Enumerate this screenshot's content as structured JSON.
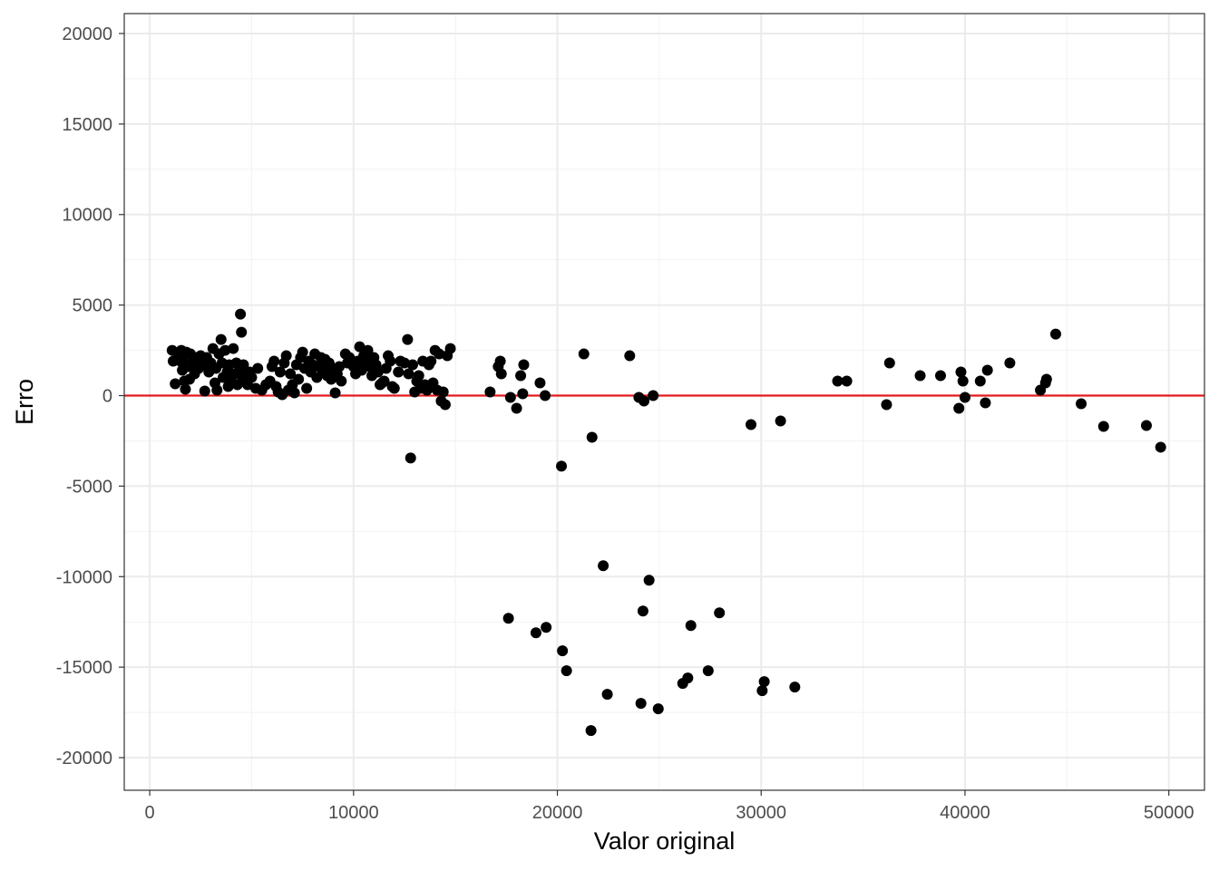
{
  "chart_data": {
    "type": "scatter",
    "title": "",
    "xlabel": "Valor original",
    "ylabel": "Erro",
    "xlim": [
      -1250,
      51750
    ],
    "ylim": [
      -21800,
      21100
    ],
    "x_ticks": [
      0,
      10000,
      20000,
      30000,
      40000,
      50000
    ],
    "x_tick_labels": [
      "0",
      "10000",
      "20000",
      "30000",
      "40000",
      "50000"
    ],
    "y_ticks": [
      -20000,
      -15000,
      -10000,
      -5000,
      0,
      5000,
      10000,
      15000,
      20000
    ],
    "y_tick_labels": [
      "-20000",
      "-15000",
      "-10000",
      "-5000",
      "0",
      "5000",
      "10000",
      "15000",
      "20000"
    ],
    "grid": true,
    "reference_line": {
      "y": 0,
      "color": "#e41a1c"
    },
    "point_color": "#000000",
    "points": [
      [
        1100,
        2500
      ],
      [
        1150,
        1900
      ],
      [
        1250,
        650
      ],
      [
        1400,
        2300
      ],
      [
        1500,
        1900
      ],
      [
        1550,
        2500
      ],
      [
        1600,
        1400
      ],
      [
        1650,
        2100
      ],
      [
        1700,
        800
      ],
      [
        1750,
        350
      ],
      [
        1800,
        2400
      ],
      [
        1900,
        1600
      ],
      [
        1950,
        900
      ],
      [
        2000,
        2300
      ],
      [
        2100,
        1800
      ],
      [
        2200,
        1200
      ],
      [
        2300,
        2100
      ],
      [
        2400,
        1500
      ],
      [
        2500,
        2200
      ],
      [
        2600,
        1700
      ],
      [
        2700,
        250
      ],
      [
        2800,
        2100
      ],
      [
        2900,
        1300
      ],
      [
        3000,
        1800
      ],
      [
        3100,
        2600
      ],
      [
        3200,
        700
      ],
      [
        3250,
        1500
      ],
      [
        3300,
        300
      ],
      [
        3400,
        2300
      ],
      [
        3500,
        3100
      ],
      [
        3550,
        1800
      ],
      [
        3600,
        1000
      ],
      [
        3700,
        2500
      ],
      [
        3800,
        1300
      ],
      [
        3850,
        500
      ],
      [
        3900,
        1700
      ],
      [
        4000,
        800
      ],
      [
        4100,
        2600
      ],
      [
        4150,
        1200
      ],
      [
        4250,
        1800
      ],
      [
        4300,
        600
      ],
      [
        4400,
        1400
      ],
      [
        4450,
        4500
      ],
      [
        4500,
        3500
      ],
      [
        4550,
        900
      ],
      [
        4600,
        1700
      ],
      [
        4700,
        1100
      ],
      [
        4800,
        600
      ],
      [
        4900,
        1300
      ],
      [
        5000,
        1000
      ],
      [
        5200,
        400
      ],
      [
        5300,
        1500
      ],
      [
        5500,
        300
      ],
      [
        5700,
        600
      ],
      [
        5900,
        800
      ],
      [
        6000,
        1600
      ],
      [
        6100,
        1900
      ],
      [
        6200,
        500
      ],
      [
        6300,
        200
      ],
      [
        6400,
        1300
      ],
      [
        6500,
        50
      ],
      [
        6600,
        1800
      ],
      [
        6700,
        2200
      ],
      [
        6800,
        300
      ],
      [
        6900,
        1200
      ],
      [
        7000,
        600
      ],
      [
        7100,
        150
      ],
      [
        7200,
        1700
      ],
      [
        7300,
        900
      ],
      [
        7400,
        2100
      ],
      [
        7500,
        2400
      ],
      [
        7600,
        1500
      ],
      [
        7700,
        400
      ],
      [
        7800,
        1900
      ],
      [
        7900,
        1300
      ],
      [
        8000,
        1700
      ],
      [
        8100,
        2300
      ],
      [
        8200,
        1000
      ],
      [
        8300,
        1600
      ],
      [
        8400,
        2100
      ],
      [
        8500,
        1400
      ],
      [
        8600,
        2000
      ],
      [
        8700,
        1100
      ],
      [
        8800,
        1800
      ],
      [
        8900,
        900
      ],
      [
        9000,
        1500
      ],
      [
        9100,
        150
      ],
      [
        9200,
        1200
      ],
      [
        9300,
        1600
      ],
      [
        9400,
        800
      ],
      [
        9600,
        2300
      ],
      [
        9700,
        1800
      ],
      [
        9800,
        2100
      ],
      [
        10000,
        1600
      ],
      [
        10100,
        1200
      ],
      [
        10200,
        1900
      ],
      [
        10300,
        2700
      ],
      [
        10400,
        1400
      ],
      [
        10500,
        2200
      ],
      [
        10600,
        1800
      ],
      [
        10700,
        2500
      ],
      [
        10800,
        1600
      ],
      [
        10900,
        1100
      ],
      [
        11000,
        2100
      ],
      [
        11100,
        1700
      ],
      [
        11200,
        1300
      ],
      [
        11300,
        600
      ],
      [
        11400,
        700
      ],
      [
        11500,
        800
      ],
      [
        11600,
        1500
      ],
      [
        11700,
        2200
      ],
      [
        11800,
        1900
      ],
      [
        11900,
        500
      ],
      [
        12000,
        400
      ],
      [
        12200,
        1300
      ],
      [
        12300,
        1900
      ],
      [
        12500,
        1800
      ],
      [
        12650,
        3100
      ],
      [
        12700,
        1200
      ],
      [
        12800,
        -3450
      ],
      [
        12900,
        1700
      ],
      [
        13000,
        200
      ],
      [
        13100,
        800
      ],
      [
        13200,
        1100
      ],
      [
        13300,
        400
      ],
      [
        13400,
        1900
      ],
      [
        13500,
        600
      ],
      [
        13600,
        300
      ],
      [
        13700,
        1700
      ],
      [
        13800,
        1900
      ],
      [
        13900,
        700
      ],
      [
        14000,
        2500
      ],
      [
        14100,
        300
      ],
      [
        14200,
        2300
      ],
      [
        14300,
        -300
      ],
      [
        14400,
        200
      ],
      [
        14500,
        -500
      ],
      [
        14600,
        2200
      ],
      [
        14750,
        2600
      ],
      [
        16700,
        200
      ],
      [
        17100,
        1600
      ],
      [
        17200,
        1900
      ],
      [
        17250,
        1200
      ],
      [
        17600,
        -12300
      ],
      [
        17700,
        -100
      ],
      [
        18000,
        -700
      ],
      [
        18200,
        1100
      ],
      [
        18300,
        100
      ],
      [
        18350,
        1700
      ],
      [
        18950,
        -13100
      ],
      [
        19150,
        700
      ],
      [
        19450,
        -12800
      ],
      [
        19400,
        0
      ],
      [
        20200,
        -3900
      ],
      [
        20250,
        -14100
      ],
      [
        20450,
        -15200
      ],
      [
        21300,
        2300
      ],
      [
        21650,
        -18500
      ],
      [
        21700,
        -2300
      ],
      [
        22250,
        -9400
      ],
      [
        22450,
        -16500
      ],
      [
        23550,
        2200
      ],
      [
        24000,
        -100
      ],
      [
        24100,
        -17000
      ],
      [
        24200,
        -11900
      ],
      [
        24250,
        -300
      ],
      [
        24500,
        -10200
      ],
      [
        24700,
        0
      ],
      [
        24950,
        -17300
      ],
      [
        26150,
        -15900
      ],
      [
        26400,
        -15600
      ],
      [
        26550,
        -12700
      ],
      [
        27400,
        -15200
      ],
      [
        27950,
        -12000
      ],
      [
        29500,
        -1600
      ],
      [
        30050,
        -16300
      ],
      [
        30150,
        -15800
      ],
      [
        30950,
        -1400
      ],
      [
        31650,
        -16100
      ],
      [
        33750,
        800
      ],
      [
        34200,
        800
      ],
      [
        36150,
        -500
      ],
      [
        36300,
        1800
      ],
      [
        37800,
        1100
      ],
      [
        38800,
        1100
      ],
      [
        39700,
        -700
      ],
      [
        39800,
        1300
      ],
      [
        39900,
        800
      ],
      [
        40000,
        -100
      ],
      [
        40750,
        800
      ],
      [
        41000,
        -400
      ],
      [
        41100,
        1400
      ],
      [
        42200,
        1800
      ],
      [
        43700,
        300
      ],
      [
        43950,
        700
      ],
      [
        44000,
        900
      ],
      [
        44450,
        3400
      ],
      [
        45700,
        -450
      ],
      [
        46800,
        -1700
      ],
      [
        48900,
        -1650
      ],
      [
        49600,
        -2850
      ]
    ]
  }
}
